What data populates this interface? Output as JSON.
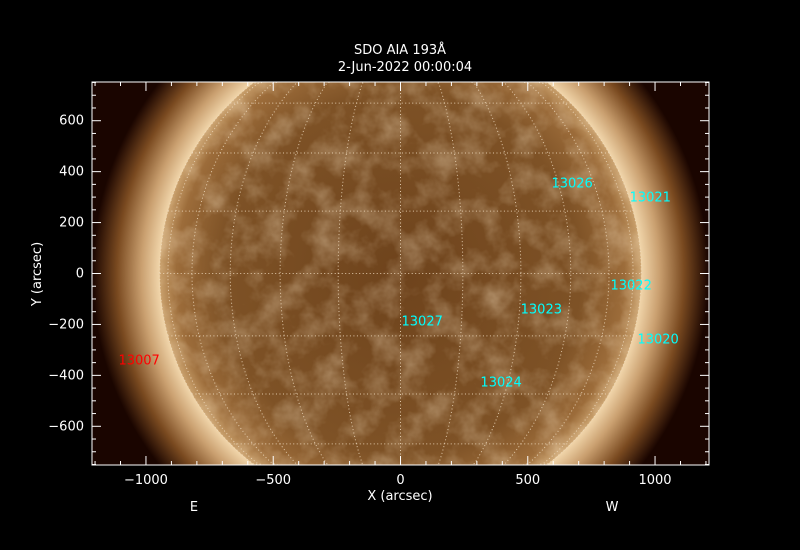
{
  "title": "SDO AIA 193Å",
  "subtitle": "2-Jun-2022 00:00:04",
  "xlabel": "X (arcsec)",
  "ylabel": "Y (arcsec)",
  "east_label": "E",
  "west_label": "W",
  "xlim": [
    -1212,
    1212
  ],
  "ylim": [
    -752,
    752
  ],
  "xticks": [
    -1000,
    -500,
    0,
    500,
    1000
  ],
  "yticks": [
    -600,
    -400,
    -200,
    0,
    200,
    400,
    600
  ],
  "x_minor_step": 100,
  "y_minor_step": 50,
  "solar_radius_arcsec": 946,
  "grid_spacing_deg": 15,
  "colors": {
    "background": "#000000",
    "disk": "#8a5a2a",
    "corona": "#e8c898",
    "grid": "#f0dcc0",
    "on_disk_label": "#00ffff",
    "off_disk_label": "#ff0000"
  },
  "active_regions": [
    {
      "number": "13026",
      "x": 593,
      "y": 357,
      "color": "#00ffff"
    },
    {
      "number": "13021",
      "x": 900,
      "y": 302,
      "color": "#00ffff"
    },
    {
      "number": "13022",
      "x": 825,
      "y": -43,
      "color": "#00ffff"
    },
    {
      "number": "13023",
      "x": 472,
      "y": -137,
      "color": "#00ffff"
    },
    {
      "number": "13027",
      "x": 4,
      "y": -184,
      "color": "#00ffff"
    },
    {
      "number": "13020",
      "x": 931,
      "y": -255,
      "color": "#00ffff"
    },
    {
      "number": "13024",
      "x": 314,
      "y": -424,
      "color": "#00ffff"
    },
    {
      "number": "13007",
      "x": -1108,
      "y": -337,
      "color": "#ff0000"
    }
  ]
}
